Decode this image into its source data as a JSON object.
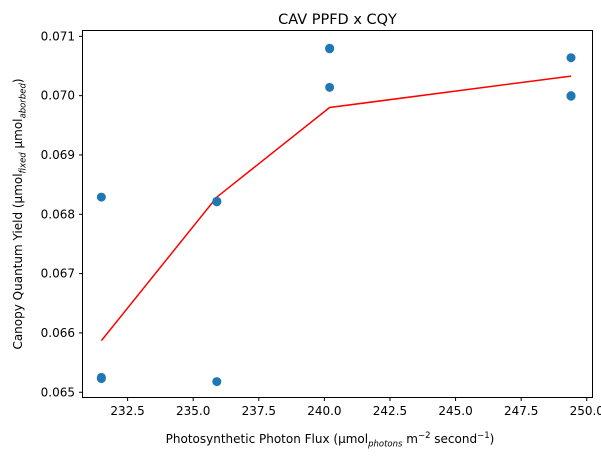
{
  "chart_data": {
    "type": "scatter",
    "title": "CAV PPFD x CQY",
    "xlabel": {
      "prefix": "Photosynthetic Photon Flux (µmol",
      "sub": "photons",
      "mid": " m",
      "sup1": "−2",
      "mid2": " second",
      "sup2": "−1",
      "suffix": ")"
    },
    "ylabel": {
      "prefix": "Canopy Quantum Yield (µmol",
      "sub1": "fixed",
      "mid": " µmol",
      "sub2": "aborbed",
      "suffix": ")"
    },
    "xlim": [
      230.8,
      250.2
    ],
    "ylim": [
      0.06492,
      0.07109
    ],
    "xticks": [
      232.5,
      235.0,
      237.5,
      240.0,
      242.5,
      245.0,
      247.5,
      250.0
    ],
    "xtick_labels": [
      "232.5",
      "235.0",
      "237.5",
      "240.0",
      "242.5",
      "245.0",
      "247.5",
      "250.0"
    ],
    "yticks": [
      0.065,
      0.066,
      0.067,
      0.068,
      0.069,
      0.07,
      0.071
    ],
    "ytick_labels": [
      "0.065",
      "0.066",
      "0.067",
      "0.068",
      "0.069",
      "0.070",
      "0.071"
    ],
    "points": {
      "color": "#1f77b4",
      "x": [
        231.5,
        231.5,
        231.5,
        235.9,
        235.9,
        235.9,
        240.2,
        240.2,
        240.2,
        249.4,
        249.4,
        249.4
      ],
      "y": [
        0.06829,
        0.06525,
        0.06523,
        0.06822,
        0.06821,
        0.06518,
        0.0708,
        0.07079,
        0.07014,
        0.07064,
        0.07,
        0.06999
      ]
    },
    "fit_line": {
      "color": "#ff0000",
      "x": [
        231.5,
        235.9,
        240.2,
        249.4
      ],
      "y": [
        0.06587,
        0.06829,
        0.0698,
        0.07033
      ]
    },
    "grid": false
  }
}
